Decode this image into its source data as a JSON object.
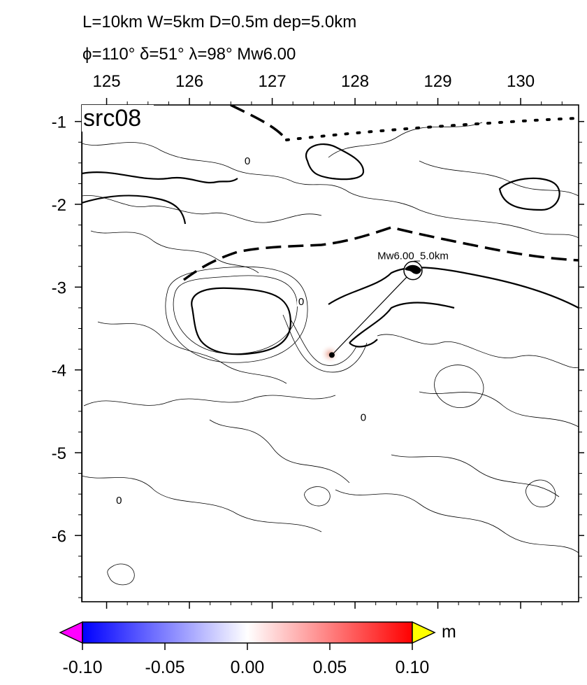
{
  "title": {
    "line1": "L=10km W=5km D=0.5m dep=5.0km",
    "line2": "ϕ=110° δ=51° λ=98° Mw6.00"
  },
  "panel_label": "src08",
  "axes": {
    "x_ticks": [
      "125",
      "126",
      "127",
      "128",
      "129",
      "130"
    ],
    "y_ticks": [
      "-1",
      "-2",
      "-3",
      "-4",
      "-5",
      "-6"
    ],
    "x_range": [
      124.7,
      130.7
    ],
    "y_range": [
      -6.8,
      -0.8
    ]
  },
  "source": {
    "label": "Mw6.00_5.0km",
    "epicenter_lon": 127.72,
    "epicenter_lat": -3.82,
    "beachball_lon": 128.7,
    "beachball_lat": -2.8
  },
  "contour_labels": [
    {
      "text": "0",
      "lon": 126.7,
      "lat": -1.5
    },
    {
      "text": "0",
      "lon": 127.35,
      "lat": -3.2
    },
    {
      "text": "0",
      "lon": 128.1,
      "lat": -4.6
    },
    {
      "text": "0",
      "lon": 125.15,
      "lat": -5.6
    }
  ],
  "colorbar": {
    "labels": [
      "-0.10",
      "-0.05",
      "0.00",
      "0.05",
      "0.10"
    ],
    "unit": "m",
    "colors": {
      "low_ext": "#ff00ff",
      "min": "#0000ff",
      "mid": "#ffffff",
      "max": "#ff0000",
      "high_ext": "#ffff00"
    }
  }
}
